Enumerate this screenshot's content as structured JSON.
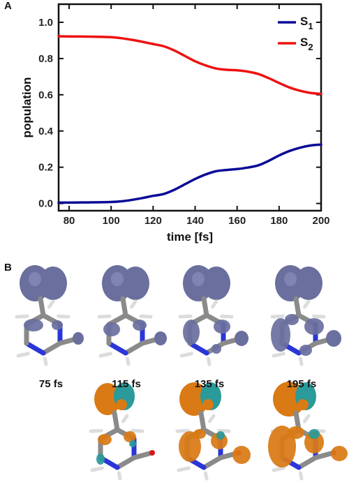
{
  "panel_a_label": "A",
  "panel_b_label": "B",
  "chart_data": {
    "type": "line",
    "xlabel": "time [fs]",
    "ylabel": "population",
    "xlim": [
      75,
      200
    ],
    "ylim": [
      -0.04,
      1.1
    ],
    "xticks": [
      80,
      100,
      120,
      140,
      160,
      180,
      200
    ],
    "yticks": [
      0.0,
      0.2,
      0.4,
      0.6,
      0.8,
      1.0
    ],
    "grid": false,
    "legend_position": "top-right",
    "series": [
      {
        "name": "S1",
        "name_base": "S",
        "name_sub": "1",
        "color": "#0a0a96",
        "x": [
          75,
          80,
          90,
          100,
          105,
          110,
          115,
          120,
          125,
          130,
          135,
          140,
          145,
          150,
          155,
          160,
          165,
          170,
          175,
          180,
          185,
          190,
          195,
          200
        ],
        "y": [
          0.005,
          0.005,
          0.006,
          0.008,
          0.012,
          0.02,
          0.03,
          0.042,
          0.052,
          0.075,
          0.105,
          0.135,
          0.16,
          0.178,
          0.185,
          0.19,
          0.198,
          0.21,
          0.235,
          0.265,
          0.29,
          0.308,
          0.32,
          0.325
        ]
      },
      {
        "name": "S2",
        "name_base": "S",
        "name_sub": "2",
        "color": "#ee1111",
        "x": [
          75,
          80,
          90,
          100,
          105,
          110,
          115,
          120,
          125,
          130,
          135,
          140,
          145,
          150,
          155,
          160,
          165,
          170,
          175,
          180,
          185,
          190,
          195,
          200
        ],
        "y": [
          0.923,
          0.922,
          0.921,
          0.918,
          0.912,
          0.903,
          0.892,
          0.88,
          0.868,
          0.845,
          0.815,
          0.785,
          0.762,
          0.745,
          0.738,
          0.735,
          0.728,
          0.715,
          0.692,
          0.665,
          0.64,
          0.622,
          0.61,
          0.605
        ]
      }
    ]
  },
  "snapshots": {
    "labels": [
      "75 fs",
      "115 fs",
      "135 fs",
      "195 fs"
    ]
  },
  "colors": {
    "density_purple": "#6a6f9e",
    "density_orange": "#d97a14",
    "density_teal": "#2a9a9a",
    "bond_gray": "#8a8a8a",
    "nitrogen_blue": "#2a36d8",
    "oxygen_red": "#d81818",
    "hydrogen_white": "#f2f2f2"
  }
}
